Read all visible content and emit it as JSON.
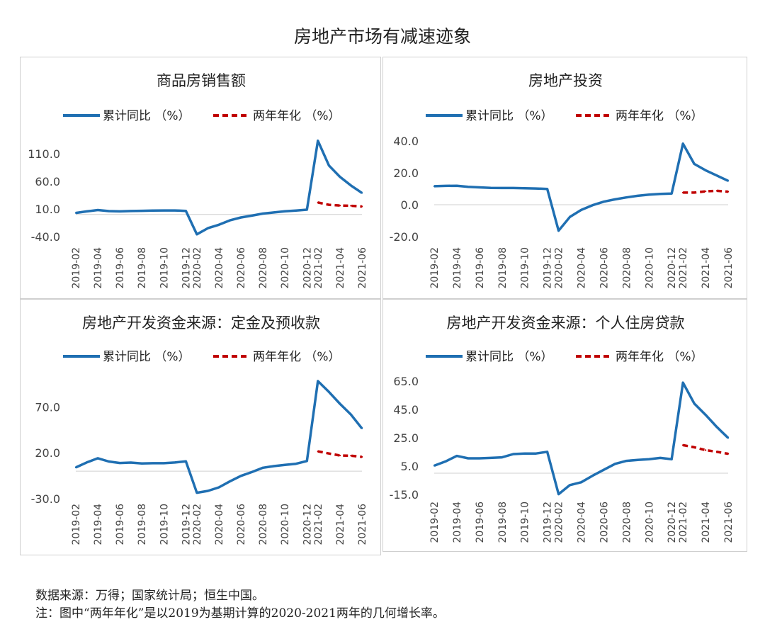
{
  "main_title": "房地产市场有减速迹象",
  "footer": {
    "source": "数据来源：万得；国家统计局；恒生中国。",
    "note": "注：图中“两年年化”是以2019为基期计算的2020-2021两年的几何增长率。"
  },
  "colors": {
    "series_cumulative": "#1f6fb2",
    "series_annualized": "#c00000"
  },
  "chart_data": [
    {
      "type": "line",
      "title": "商品房销售额",
      "categories": [
        "2019-02",
        "2019-03",
        "2019-04",
        "2019-05",
        "2019-06",
        "2019-07",
        "2019-08",
        "2019-09",
        "2019-10",
        "2019-11",
        "2019-12",
        "2020-02",
        "2020-03",
        "2020-04",
        "2020-05",
        "2020-06",
        "2020-07",
        "2020-08",
        "2020-09",
        "2020-10",
        "2020-11",
        "2020-12",
        "2021-02",
        "2021-03",
        "2021-04",
        "2021-05",
        "2021-06"
      ],
      "tick_labels": [
        "2019-02",
        "2019-04",
        "2019-06",
        "2019-08",
        "2019-10",
        "2019-12",
        "2020-02",
        "2020-04",
        "2020-06",
        "2020-08",
        "2020-10",
        "2020-12",
        "2021-02",
        "2021-04",
        "2021-06"
      ],
      "yticks": [
        "110.0",
        "60.0",
        "10.0",
        "-40.0"
      ],
      "yticks_values": [
        110,
        60,
        10,
        -40
      ],
      "ylim": [
        -40,
        133
      ],
      "legend": [
        "累计同比 （%）",
        "两年年化 （%）"
      ],
      "legend_position": "top",
      "grid": false,
      "series": [
        {
          "name": "累计同比 （%）",
          "values": [
            2.8,
            5.6,
            8.1,
            6.1,
            5.6,
            6.2,
            6.7,
            7.1,
            7.3,
            7.3,
            6.5,
            -35.9,
            -24.7,
            -18.6,
            -10.6,
            -5.4,
            -2.1,
            1.6,
            3.7,
            5.8,
            7.2,
            8.7,
            133.4,
            88.5,
            68.2,
            52.4,
            38.9
          ]
        },
        {
          "name": "两年年化 （%）",
          "values": [
            null,
            null,
            null,
            null,
            null,
            null,
            null,
            null,
            null,
            null,
            null,
            null,
            null,
            null,
            null,
            null,
            null,
            null,
            null,
            null,
            null,
            null,
            21.7,
            17.5,
            16.1,
            15.8,
            14.5
          ]
        }
      ]
    },
    {
      "type": "line",
      "title": "房地产投资",
      "categories": [
        "2019-02",
        "2019-03",
        "2019-04",
        "2019-05",
        "2019-06",
        "2019-07",
        "2019-08",
        "2019-09",
        "2019-10",
        "2019-11",
        "2019-12",
        "2020-02",
        "2020-03",
        "2020-04",
        "2020-05",
        "2020-06",
        "2020-07",
        "2020-08",
        "2020-09",
        "2020-10",
        "2020-11",
        "2020-12",
        "2021-02",
        "2021-03",
        "2021-04",
        "2021-05",
        "2021-06"
      ],
      "tick_labels": [
        "2019-02",
        "2019-04",
        "2019-06",
        "2019-08",
        "2019-10",
        "2019-12",
        "2020-02",
        "2020-04",
        "2020-06",
        "2020-08",
        "2020-10",
        "2020-12",
        "2021-02",
        "2021-04",
        "2021-06"
      ],
      "yticks": [
        "40.0",
        "20.0",
        "0.0",
        "-20.0"
      ],
      "yticks_values": [
        40,
        20,
        0,
        -20
      ],
      "ylim": [
        -20,
        40
      ],
      "legend": [
        "累计同比 （%）",
        "两年年化 （%）"
      ],
      "legend_position": "top",
      "grid": false,
      "series": [
        {
          "name": "累计同比 （%）",
          "values": [
            11.6,
            11.8,
            11.9,
            11.2,
            10.9,
            10.6,
            10.5,
            10.5,
            10.3,
            10.2,
            9.9,
            -16.3,
            -7.7,
            -3.3,
            -0.3,
            1.9,
            3.4,
            4.6,
            5.6,
            6.3,
            6.8,
            7.0,
            38.3,
            25.6,
            21.6,
            18.3,
            15.0
          ]
        },
        {
          "name": "两年年化 （%）",
          "values": [
            null,
            null,
            null,
            null,
            null,
            null,
            null,
            null,
            null,
            null,
            null,
            null,
            null,
            null,
            null,
            null,
            null,
            null,
            null,
            null,
            null,
            null,
            7.6,
            7.6,
            8.4,
            8.7,
            8.2
          ]
        }
      ]
    },
    {
      "type": "line",
      "title": "房地产开发资金来源：定金及预收款",
      "categories": [
        "2019-02",
        "2019-03",
        "2019-04",
        "2019-05",
        "2019-06",
        "2019-07",
        "2019-08",
        "2019-09",
        "2019-10",
        "2019-11",
        "2019-12",
        "2020-02",
        "2020-03",
        "2020-04",
        "2020-05",
        "2020-06",
        "2020-07",
        "2020-08",
        "2020-09",
        "2020-10",
        "2020-11",
        "2020-12",
        "2021-02",
        "2021-03",
        "2021-04",
        "2021-05",
        "2021-06"
      ],
      "tick_labels": [
        "2019-02",
        "2019-04",
        "2019-06",
        "2019-08",
        "2019-10",
        "2019-12",
        "2020-02",
        "2020-04",
        "2020-06",
        "2020-08",
        "2020-10",
        "2020-12",
        "2021-02",
        "2021-04",
        "2021-06"
      ],
      "yticks": [
        "70.0",
        "20.0",
        "-30.0"
      ],
      "yticks_values": [
        70,
        20,
        -30
      ],
      "ylim": [
        -30,
        98
      ],
      "legend": [
        "累计同比 （%）",
        "两年年化 （%）"
      ],
      "legend_position": "top",
      "grid": false,
      "series": [
        {
          "name": "累计同比 （%）",
          "values": [
            4.0,
            9.5,
            14.0,
            10.5,
            8.9,
            9.3,
            8.3,
            8.6,
            8.6,
            9.4,
            10.7,
            -23.5,
            -21.5,
            -17.7,
            -11.2,
            -5.2,
            -1.0,
            3.7,
            5.5,
            6.8,
            8.0,
            11.0,
            98.0,
            86.2,
            73.3,
            61.5,
            46.5
          ]
        },
        {
          "name": "两年年化 （%）",
          "values": [
            null,
            null,
            null,
            null,
            null,
            null,
            null,
            null,
            null,
            null,
            null,
            null,
            null,
            null,
            null,
            null,
            null,
            null,
            null,
            null,
            null,
            null,
            21.5,
            19.2,
            17.0,
            16.8,
            15.5
          ]
        }
      ]
    },
    {
      "type": "line",
      "title": "房地产开发资金来源：个人住房贷款",
      "categories": [
        "2019-02",
        "2019-03",
        "2019-04",
        "2019-05",
        "2019-06",
        "2019-07",
        "2019-08",
        "2019-09",
        "2019-10",
        "2019-11",
        "2019-12",
        "2020-02",
        "2020-03",
        "2020-04",
        "2020-05",
        "2020-06",
        "2020-07",
        "2020-08",
        "2020-09",
        "2020-10",
        "2020-11",
        "2020-12",
        "2021-02",
        "2021-03",
        "2021-04",
        "2021-05",
        "2021-06"
      ],
      "tick_labels": [
        "2019-02",
        "2019-04",
        "2019-06",
        "2019-08",
        "2019-10",
        "2019-12",
        "2020-02",
        "2020-04",
        "2020-06",
        "2020-08",
        "2020-10",
        "2020-12",
        "2021-02",
        "2021-04",
        "2021-06"
      ],
      "yticks": [
        "65.0",
        "45.0",
        "25.0",
        "5.0",
        "-15.0"
      ],
      "yticks_values": [
        65,
        45,
        25,
        5,
        -15
      ],
      "ylim": [
        -15,
        65
      ],
      "legend": [
        "累计同比 （%）",
        "两年年化 （%）"
      ],
      "legend_position": "top",
      "grid": false,
      "series": [
        {
          "name": "累计同比 （%）",
          "values": [
            5.3,
            8.3,
            12.2,
            10.5,
            10.5,
            10.8,
            11.2,
            13.5,
            13.9,
            13.9,
            15.1,
            -14.8,
            -8.4,
            -6.4,
            -1.8,
            2.4,
            6.6,
            8.7,
            9.4,
            9.9,
            10.8,
            9.9,
            63.9,
            49.2,
            41.2,
            32.6,
            24.9
          ]
        },
        {
          "name": "两年年化 （%）",
          "values": [
            null,
            null,
            null,
            null,
            null,
            null,
            null,
            null,
            null,
            null,
            null,
            null,
            null,
            null,
            null,
            null,
            null,
            null,
            null,
            null,
            null,
            null,
            19.8,
            18.3,
            16.3,
            15.1,
            13.7
          ]
        }
      ]
    }
  ]
}
